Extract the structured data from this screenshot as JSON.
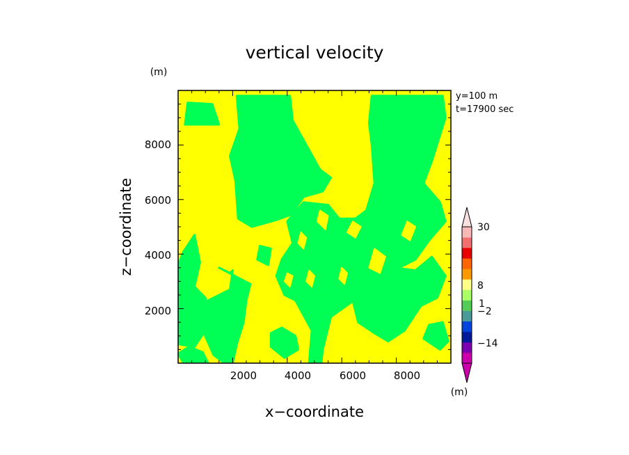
{
  "chart_data": {
    "type": "heatmap",
    "title": "vertical velocity",
    "xlabel": "x−coordinate",
    "ylabel": "z−coordinate",
    "y_unit": "(m)",
    "xlim": [
      0,
      10000
    ],
    "ylim": [
      0,
      10000
    ],
    "x_ticks": [
      "2000",
      "4000",
      "6000",
      "8000"
    ],
    "y_ticks": [
      "2000",
      "4000",
      "6000",
      "8000"
    ],
    "x_tick_values": [
      2000,
      4000,
      6000,
      8000
    ],
    "y_tick_values": [
      2000,
      4000,
      6000,
      8000
    ],
    "annotations": [
      "y=100 m",
      "t=17900 sec"
    ],
    "field_colors": {
      "yellow": "#ffff00",
      "green": "#00ff55"
    },
    "colorbar": {
      "unit": "(m)",
      "labels": [
        "30",
        "8",
        "1",
        "−2",
        "−14"
      ],
      "label_values": [
        30,
        8,
        1,
        -2,
        -14
      ],
      "colors": [
        "#cc00aa",
        "#7a00b0",
        "#001a99",
        "#0044dd",
        "#4a9a9a",
        "#55cc55",
        "#aaff66",
        "#ffff88",
        "#ff9900",
        "#ff6600",
        "#e60000",
        "#f07070",
        "#f8b8b8"
      ]
    },
    "green_regions": [
      [
        [
          250,
          8750
        ],
        [
          1500,
          8750
        ],
        [
          1250,
          9500
        ],
        [
          350,
          9550
        ]
      ],
      [
        [
          2150,
          9800
        ],
        [
          4100,
          9800
        ],
        [
          4200,
          8900
        ],
        [
          5200,
          7100
        ],
        [
          5600,
          6800
        ],
        [
          5300,
          6300
        ],
        [
          4600,
          6100
        ],
        [
          4150,
          5450
        ],
        [
          3600,
          5250
        ],
        [
          2700,
          5000
        ],
        [
          2200,
          5300
        ],
        [
          2100,
          6700
        ],
        [
          1900,
          7600
        ],
        [
          2250,
          8600
        ]
      ],
      [
        [
          7100,
          9800
        ],
        [
          9700,
          9800
        ],
        [
          9800,
          9000
        ],
        [
          9300,
          7400
        ],
        [
          9000,
          6600
        ],
        [
          9600,
          5900
        ],
        [
          9800,
          5200
        ],
        [
          9200,
          4500
        ],
        [
          8700,
          3800
        ],
        [
          8100,
          3500
        ],
        [
          7400,
          3300
        ],
        [
          6800,
          2600
        ],
        [
          6300,
          2200
        ],
        [
          5600,
          1700
        ],
        [
          5300,
          500
        ],
        [
          5250,
          0
        ],
        [
          4800,
          0
        ],
        [
          4900,
          1200
        ],
        [
          4300,
          2300
        ],
        [
          3900,
          2500
        ],
        [
          3600,
          3200
        ],
        [
          3800,
          3800
        ],
        [
          4200,
          4400
        ],
        [
          4000,
          5200
        ],
        [
          4600,
          5900
        ],
        [
          5500,
          5800
        ],
        [
          5900,
          5300
        ],
        [
          6500,
          5300
        ],
        [
          6900,
          5600
        ],
        [
          7200,
          6600
        ],
        [
          7100,
          8000
        ],
        [
          7000,
          8800
        ]
      ],
      [
        [
          200,
          4100
        ],
        [
          600,
          4700
        ],
        [
          800,
          3700
        ],
        [
          600,
          2800
        ],
        [
          1000,
          2400
        ],
        [
          1150,
          1400
        ],
        [
          800,
          900
        ],
        [
          600,
          600
        ],
        [
          0,
          700
        ],
        [
          0,
          3600
        ]
      ],
      [
        [
          1500,
          3500
        ],
        [
          1900,
          3300
        ],
        [
          2000,
          3400
        ],
        [
          1900,
          2700
        ],
        [
          1100,
          2300
        ],
        [
          650,
          1800
        ],
        [
          900,
          1200
        ],
        [
          1300,
          300
        ],
        [
          1700,
          0
        ],
        [
          2000,
          0
        ],
        [
          2150,
          700
        ],
        [
          2400,
          1500
        ],
        [
          2500,
          2300
        ],
        [
          2650,
          2900
        ]
      ],
      [
        [
          5600,
          3800
        ],
        [
          6100,
          3500
        ],
        [
          6300,
          3100
        ],
        [
          6100,
          2500
        ],
        [
          6400,
          2300
        ],
        [
          6600,
          1500
        ],
        [
          7200,
          1100
        ],
        [
          7700,
          800
        ],
        [
          8300,
          1200
        ],
        [
          8900,
          2100
        ],
        [
          9500,
          2400
        ],
        [
          9800,
          3200
        ],
        [
          9300,
          3900
        ],
        [
          8700,
          3400
        ],
        [
          8000,
          3500
        ],
        [
          7400,
          3300
        ],
        [
          6800,
          2900
        ]
      ],
      [
        [
          0,
          350
        ],
        [
          200,
          0
        ],
        [
          1100,
          0
        ],
        [
          900,
          400
        ],
        [
          400,
          600
        ]
      ],
      [
        [
          3400,
          600
        ],
        [
          3900,
          200
        ],
        [
          4400,
          500
        ],
        [
          4300,
          1000
        ],
        [
          3800,
          1300
        ],
        [
          3400,
          1100
        ]
      ],
      [
        [
          9000,
          900
        ],
        [
          9600,
          500
        ],
        [
          9900,
          800
        ],
        [
          9700,
          1500
        ],
        [
          9200,
          1400
        ]
      ],
      [
        [
          2900,
          3800
        ],
        [
          3300,
          3600
        ],
        [
          3400,
          4200
        ],
        [
          3000,
          4300
        ]
      ]
    ],
    "yellow_islands": [
      [
        [
          4400,
          4400
        ],
        [
          4600,
          4200
        ],
        [
          4700,
          4600
        ],
        [
          4500,
          4800
        ]
      ],
      [
        [
          5100,
          5200
        ],
        [
          5400,
          4900
        ],
        [
          5500,
          5400
        ],
        [
          5200,
          5600
        ]
      ],
      [
        [
          6200,
          4800
        ],
        [
          6500,
          4600
        ],
        [
          6700,
          5000
        ],
        [
          6400,
          5200
        ]
      ],
      [
        [
          7000,
          3500
        ],
        [
          7400,
          3300
        ],
        [
          7600,
          3900
        ],
        [
          7200,
          4200
        ]
      ],
      [
        [
          8200,
          4700
        ],
        [
          8500,
          4500
        ],
        [
          8700,
          5000
        ],
        [
          8400,
          5200
        ]
      ],
      [
        [
          5900,
          3100
        ],
        [
          6100,
          2900
        ],
        [
          6200,
          3300
        ],
        [
          6000,
          3500
        ]
      ],
      [
        [
          4700,
          3000
        ],
        [
          4900,
          2800
        ],
        [
          5000,
          3200
        ],
        [
          4800,
          3400
        ]
      ],
      [
        [
          3900,
          3000
        ],
        [
          4100,
          2800
        ],
        [
          4200,
          3200
        ],
        [
          4000,
          3300
        ]
      ],
      [
        [
          5600,
          5900
        ],
        [
          5900,
          5800
        ],
        [
          6000,
          6200
        ],
        [
          5700,
          6300
        ]
      ]
    ]
  }
}
